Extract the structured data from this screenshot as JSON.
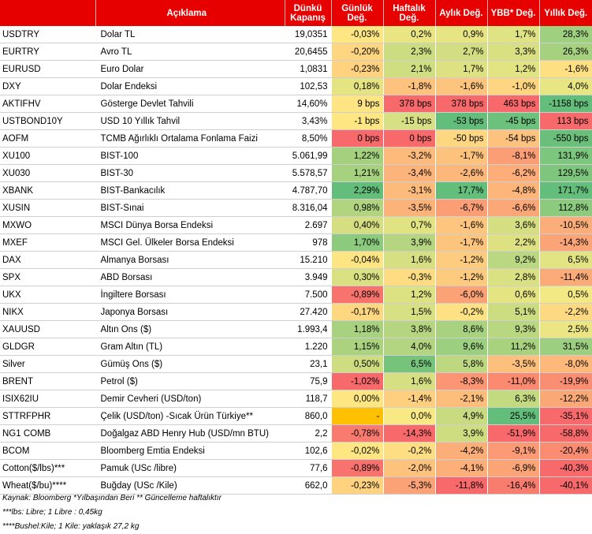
{
  "header": {
    "code": "",
    "description": "Açıklama",
    "close": "Dünkü Kapanış",
    "daily": "Günlük Değ.",
    "weekly": "Haftalık Değ.",
    "monthly": "Aylık Değ.",
    "ytd": "YBB* Değ.",
    "yearly": "Yıllık Değ."
  },
  "colors": {
    "header_bg": "#e60000",
    "strong_green": "#63be7b",
    "light_green": "#a9d27f",
    "yellow": "#ffe984",
    "orange": "#fcb57a",
    "red": "#f8696b",
    "gold": "#ffc000"
  },
  "rows": [
    {
      "code": "USDTRY",
      "desc": "Dolar TL",
      "close": "19,0351",
      "d": "-0,03%",
      "w": "0,2%",
      "m": "0,9%",
      "ytd": "1,7%",
      "y": "28,3%",
      "c": [
        "#fee683",
        "#e9e583",
        "#e6e483",
        "#e0e383",
        "#9fd07f"
      ]
    },
    {
      "code": "EURTRY",
      "desc": "Avro TL",
      "close": "20,6455",
      "d": "-0,20%",
      "w": "2,3%",
      "m": "2,7%",
      "ytd": "3,3%",
      "y": "26,3%",
      "c": [
        "#fed580",
        "#cbdc81",
        "#d2de81",
        "#d8e082",
        "#a6d17f"
      ]
    },
    {
      "code": "EURUSD",
      "desc": "Euro Dolar",
      "close": "1,0831",
      "d": "-0,23%",
      "w": "2,1%",
      "m": "1,7%",
      "ytd": "1,2%",
      "y": "-1,6%",
      "c": [
        "#fed27f",
        "#cede81",
        "#dde182",
        "#e2e383",
        "#fedf82"
      ]
    },
    {
      "code": "DXY",
      "desc": "Dolar Endeksi",
      "close": "102,53",
      "d": "0,18%",
      "w": "-1,8%",
      "m": "-1,6%",
      "ytd": "-1,0%",
      "y": "4,0%",
      "c": [
        "#e5e483",
        "#fdc27d",
        "#fdc47d",
        "#fed580",
        "#e8e583"
      ]
    },
    {
      "code": "AKTIFHV",
      "desc": "Gösterge Devlet Tahvili",
      "close": "14,60%",
      "d": "9 bps",
      "w": "378 bps",
      "m": "378 bps",
      "ytd": "463 bps",
      "y": "-1158 bps",
      "c": [
        "#fee482",
        "#f8696b",
        "#f8696b",
        "#f8696b",
        "#63be7b"
      ]
    },
    {
      "code": "USTBOND10Y",
      "desc": "USD 10 Yıllık Tahvil",
      "close": "3,43%",
      "d": "-1 bps",
      "w": "-15 bps",
      "m": "-53 bps",
      "ytd": "-45 bps",
      "y": "113 bps",
      "c": [
        "#fee683",
        "#d7e082",
        "#63be7b",
        "#6cc17c",
        "#f8696b"
      ]
    },
    {
      "code": "AOFM",
      "desc": "TCMB Ağırlıklı Ortalama Fonlama Faizi",
      "close": "8,50%",
      "d": "0 bps",
      "w": "0 bps",
      "m": "-50 bps",
      "ytd": "-54 bps",
      "y": "-550 bps",
      "c": [
        "#f8696b",
        "#f8696b",
        "#fed780",
        "#fdc27d",
        "#6ac07b"
      ]
    },
    {
      "code": "XU100",
      "desc": "BIST-100",
      "close": "5.061,99",
      "d": "1,22%",
      "w": "-3,2%",
      "m": "-1,7%",
      "ytd": "-8,1%",
      "y": "131,9%",
      "c": [
        "#a5d17f",
        "#fdba7b",
        "#fdc37d",
        "#fb9d75",
        "#7cc67d"
      ]
    },
    {
      "code": "XU030",
      "desc": "BIST-30",
      "close": "5.578,57",
      "d": "1,21%",
      "w": "-3,4%",
      "m": "-2,6%",
      "ytd": "-6,2%",
      "y": "129,5%",
      "c": [
        "#a6d17f",
        "#fcb47a",
        "#fcb87b",
        "#fdad79",
        "#7ec67d"
      ]
    },
    {
      "code": "XBANK",
      "desc": "BIST-Bankacılık",
      "close": "4.787,70",
      "d": "2,29%",
      "w": "-3,1%",
      "m": "17,7%",
      "ytd": "-4,8%",
      "y": "171,7%",
      "c": [
        "#63be7b",
        "#fdbb7b",
        "#63be7b",
        "#fdb57a",
        "#63be7b"
      ]
    },
    {
      "code": "XUSIN",
      "desc": "BIST-Sınai",
      "close": "8.316,04",
      "d": "0,98%",
      "w": "-3,5%",
      "m": "-6,7%",
      "ytd": "-6,6%",
      "y": "112,8%",
      "c": [
        "#b1d480",
        "#fcb37a",
        "#fb9e75",
        "#fba777",
        "#8ccb7e"
      ]
    },
    {
      "code": "MXWO",
      "desc": "MSCI Dünya Borsa Endeksi",
      "close": "2.697",
      "d": "0,40%",
      "w": "0,7%",
      "m": "-1,6%",
      "ytd": "3,6%",
      "y": "-10,5%",
      "c": [
        "#d5df82",
        "#e1e383",
        "#fdc57d",
        "#d5df82",
        "#fbae79"
      ]
    },
    {
      "code": "MXEF",
      "desc": "MSCI Gel. Ülkeler Borsa Endeksi",
      "close": "978",
      "d": "1,70%",
      "w": "3,9%",
      "m": "-1,7%",
      "ytd": "2,2%",
      "y": "-14,3%",
      "c": [
        "#8ccb7e",
        "#b5d580",
        "#fdc47d",
        "#dde182",
        "#fba477"
      ]
    },
    {
      "code": "DAX",
      "desc": "Almanya Borsası",
      "close": "15.210",
      "d": "-0,04%",
      "w": "1,6%",
      "m": "-1,2%",
      "ytd": "9,2%",
      "y": "6,5%",
      "c": [
        "#fee583",
        "#d6e082",
        "#fdcc7f",
        "#bad781",
        "#e2e383"
      ]
    },
    {
      "code": "SPX",
      "desc": "ABD Borsası",
      "close": "3.949",
      "d": "0,30%",
      "w": "-0,3%",
      "m": "-1,2%",
      "ytd": "2,8%",
      "y": "-11,4%",
      "c": [
        "#dae182",
        "#fedd82",
        "#fdcb7e",
        "#dae182",
        "#fbab78"
      ]
    },
    {
      "code": "UKX",
      "desc": "İngiltere Borsası",
      "close": "7.500",
      "d": "-0,89%",
      "w": "1,2%",
      "m": "-6,0%",
      "ytd": "0,6%",
      "y": "0,5%",
      "c": [
        "#f8736d",
        "#dce182",
        "#fba276",
        "#e5e483",
        "#f2e884"
      ]
    },
    {
      "code": "NIKX",
      "desc": "Japonya Borsası",
      "close": "27.420",
      "d": "-0,17%",
      "w": "1,5%",
      "m": "-0,2%",
      "ytd": "5,1%",
      "y": "-2,2%",
      "c": [
        "#fed880",
        "#d7e082",
        "#fee182",
        "#ccdc81",
        "#fdda81"
      ]
    },
    {
      "code": "XAUUSD",
      "desc": "Altın Ons ($)",
      "close": "1.993,4",
      "d": "1,18%",
      "w": "3,8%",
      "m": "8,6%",
      "ytd": "9,3%",
      "y": "2,5%",
      "c": [
        "#a8d27f",
        "#b6d580",
        "#a8d27f",
        "#b9d680",
        "#ebe683"
      ]
    },
    {
      "code": "GLDGR",
      "desc": "Gram Altın (TL)",
      "close": "1.220",
      "d": "1,15%",
      "w": "4,0%",
      "m": "9,6%",
      "ytd": "11,2%",
      "y": "31,5%",
      "c": [
        "#aad27f",
        "#b3d480",
        "#9ccf7f",
        "#a9d27f",
        "#9ccf7f"
      ]
    },
    {
      "code": "Silver",
      "desc": "Gümüş Ons ($)",
      "close": "23,1",
      "d": "0,50%",
      "w": "6,5%",
      "m": "5,8%",
      "ytd": "-3,5%",
      "y": "-8,0%",
      "c": [
        "#cfdd81",
        "#76c37c",
        "#bed881",
        "#fdbf7c",
        "#fdb87a"
      ]
    },
    {
      "code": "BRENT",
      "desc": "Petrol ($)",
      "close": "75,9",
      "d": "-1,02%",
      "w": "1,6%",
      "m": "-8,3%",
      "ytd": "-11,0%",
      "y": "-19,9%",
      "c": [
        "#f8696b",
        "#d6e082",
        "#fb9574",
        "#fb8a71",
        "#fa8e72"
      ]
    },
    {
      "code": "ISIX62IU",
      "desc": "Demir Cevheri (USD/ton)",
      "close": "118,7",
      "d": "0,00%",
      "w": "-1,4%",
      "m": "-2,1%",
      "ytd": "6,3%",
      "y": "-12,2%",
      "c": [
        "#fee783",
        "#fecf7f",
        "#fdbe7c",
        "#c4da81",
        "#fba877"
      ]
    },
    {
      "code": "STTRFPHR",
      "desc": "Çelik (USD/ton) -Sıcak Ürün Türkiye**",
      "close": "860,0",
      "d": "-",
      "w": "0,0%",
      "m": "4,9%",
      "ytd": "25,5%",
      "y": "-35,1%",
      "c": [
        "#ffc000",
        "#f8e984",
        "#c8db81",
        "#63be7b",
        "#f8696b"
      ]
    },
    {
      "code": "NG1 COMB",
      "desc": "Doğalgaz ABD Henry Hub (USD/mn BTU)",
      "close": "2,2",
      "d": "-0,78%",
      "w": "-14,3%",
      "m": "3,9%",
      "ytd": "-51,9%",
      "y": "-58,8%",
      "c": [
        "#f97b6f",
        "#f8696b",
        "#cfdd81",
        "#f8696b",
        "#f8696b"
      ]
    },
    {
      "code": "BCOM",
      "desc": "Bloomberg Emtia Endeksi",
      "close": "102,6",
      "d": "-0,02%",
      "w": "-0,2%",
      "m": "-4,2%",
      "ytd": "-9,1%",
      "y": "-20,4%",
      "c": [
        "#fee683",
        "#fede82",
        "#fcae79",
        "#fb9a75",
        "#fa8c72"
      ]
    },
    {
      "code": "Cotton($/lbs)***",
      "desc": "Pamuk (USc /libre)",
      "close": "77,6",
      "d": "-0,89%",
      "w": "-2,0%",
      "m": "-4,1%",
      "ytd": "-6,9%",
      "y": "-40,3%",
      "c": [
        "#f8736d",
        "#fdc37d",
        "#fcaf79",
        "#fba577",
        "#f8696b"
      ]
    },
    {
      "code": "Wheat($/bu)****",
      "desc": "Buğday (USc /Kile)",
      "close": "662,0",
      "d": "-0,23%",
      "w": "-5,3%",
      "m": "-11,8%",
      "ytd": "-16,4%",
      "y": "-40,1%",
      "c": [
        "#fed27f",
        "#fba376",
        "#f8696b",
        "#f97d6f",
        "#f8696b"
      ]
    }
  ],
  "notes": [
    "Kaynak: Bloomberg *Yılbaşından Beri  ** Güncelleme haftalıktır",
    "***lbs: Libre; 1 Libre : 0,45kg",
    "****Bushel:Kile; 1 Kile: yaklaşık 27,2 kg"
  ]
}
